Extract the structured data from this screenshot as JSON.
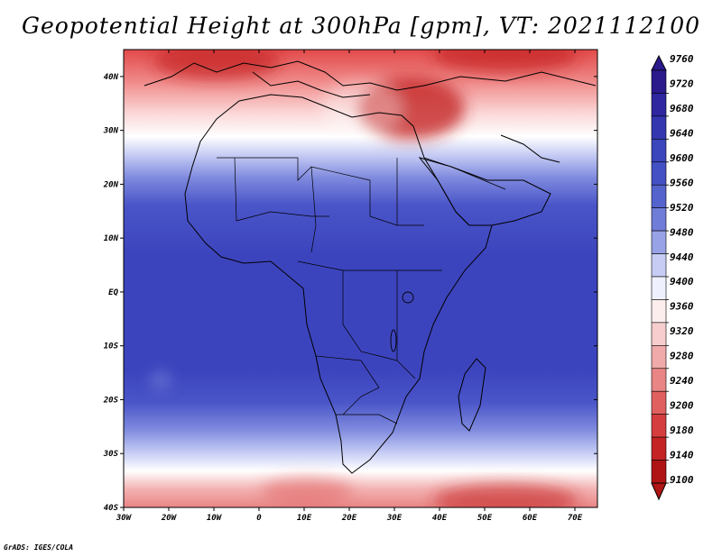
{
  "title": "Geopotential Height at 300hPa [gpm], VT: 2021112100",
  "credit": "GrADS: IGES/COLA",
  "map": {
    "lon_ticks": [
      "30W",
      "20W",
      "10W",
      "0",
      "10E",
      "20E",
      "30E",
      "40E",
      "50E",
      "60E",
      "70E"
    ],
    "lat_ticks": [
      "40N",
      "30N",
      "20N",
      "10N",
      "EQ",
      "10S",
      "20S",
      "30S",
      "40S"
    ],
    "lon_range": [
      -30,
      75
    ],
    "lat_range": [
      -40,
      45
    ]
  },
  "colorbar": {
    "levels": [
      "9760",
      "9720",
      "9680",
      "9640",
      "9600",
      "9560",
      "9520",
      "9480",
      "9440",
      "9400",
      "9360",
      "9320",
      "9280",
      "9240",
      "9200",
      "9180",
      "9140",
      "9100"
    ],
    "colors": [
      "#2a1a8c",
      "#2e27a0",
      "#3436b0",
      "#3b45bc",
      "#4451c4",
      "#5563cc",
      "#6f7cd8",
      "#98a2e6",
      "#c6ccf4",
      "#eef0fd",
      "#fdeeee",
      "#f7cdcd",
      "#f0aaaa",
      "#e98585",
      "#e06060",
      "#d53e3e",
      "#c42424",
      "#b01515"
    ]
  }
}
